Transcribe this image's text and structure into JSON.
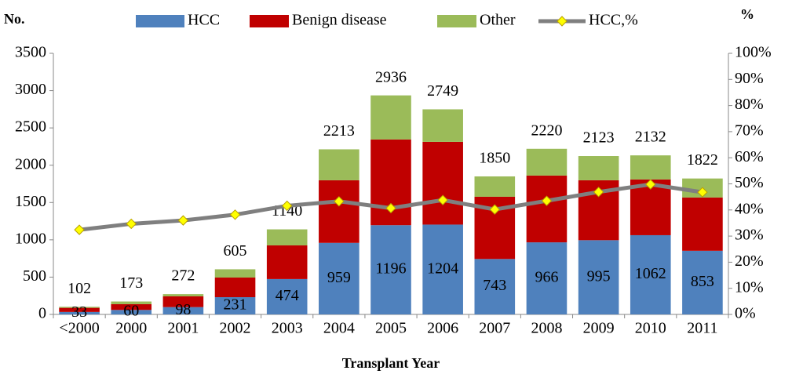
{
  "chart_data": {
    "type": "bar",
    "y_axis_label": "No.",
    "y2_axis_label": "%",
    "x_axis_label": "Transplant Year",
    "categories": [
      "<2000",
      "2000",
      "2001",
      "2002",
      "2003",
      "2004",
      "2005",
      "2006",
      "2007",
      "2008",
      "2009",
      "2010",
      "2011"
    ],
    "series": [
      {
        "name": "HCC",
        "color": "#4f81bd",
        "values": [
          33,
          60,
          98,
          231,
          474,
          959,
          1196,
          1204,
          743,
          966,
          995,
          1062,
          853
        ]
      },
      {
        "name": "Benign disease",
        "color": "#c00000",
        "values": [
          55,
          77,
          144,
          263,
          451,
          839,
          1149,
          1109,
          834,
          895,
          803,
          747,
          714
        ]
      },
      {
        "name": "Other",
        "color": "#9bbb59",
        "values": [
          14,
          36,
          30,
          111,
          215,
          415,
          591,
          436,
          273,
          359,
          325,
          323,
          255
        ]
      },
      {
        "name": "HCC,%",
        "color": "#7f7f7f",
        "marker_color": "#ffff00",
        "axis": "y2",
        "type": "line",
        "values": [
          32.4,
          34.7,
          36.0,
          38.2,
          41.6,
          43.3,
          40.7,
          43.8,
          40.2,
          43.5,
          46.9,
          49.8,
          46.8
        ]
      }
    ],
    "totals": [
      102,
      173,
      272,
      605,
      1140,
      2213,
      2936,
      2749,
      1850,
      2220,
      2123,
      2132,
      1822
    ],
    "ylim": [
      0,
      3500
    ],
    "yticks": [
      0,
      500,
      1000,
      1500,
      2000,
      2500,
      3000,
      3500
    ],
    "y2lim": [
      0,
      100
    ],
    "y2ticks": [
      {
        "value": 0,
        "label": "0%"
      },
      {
        "value": 10,
        "label": "10%"
      },
      {
        "value": 20,
        "label": "20%"
      },
      {
        "value": 30,
        "label": "30%"
      },
      {
        "value": 40,
        "label": "40%"
      },
      {
        "value": 50,
        "label": "50%"
      },
      {
        "value": 60,
        "label": "60%"
      },
      {
        "value": 70,
        "label": "70%"
      },
      {
        "value": 80,
        "label": "80%"
      },
      {
        "value": 90,
        "label": "90%"
      },
      {
        "value": 100,
        "label": "100%"
      }
    ],
    "grid": false,
    "legend": "top"
  }
}
